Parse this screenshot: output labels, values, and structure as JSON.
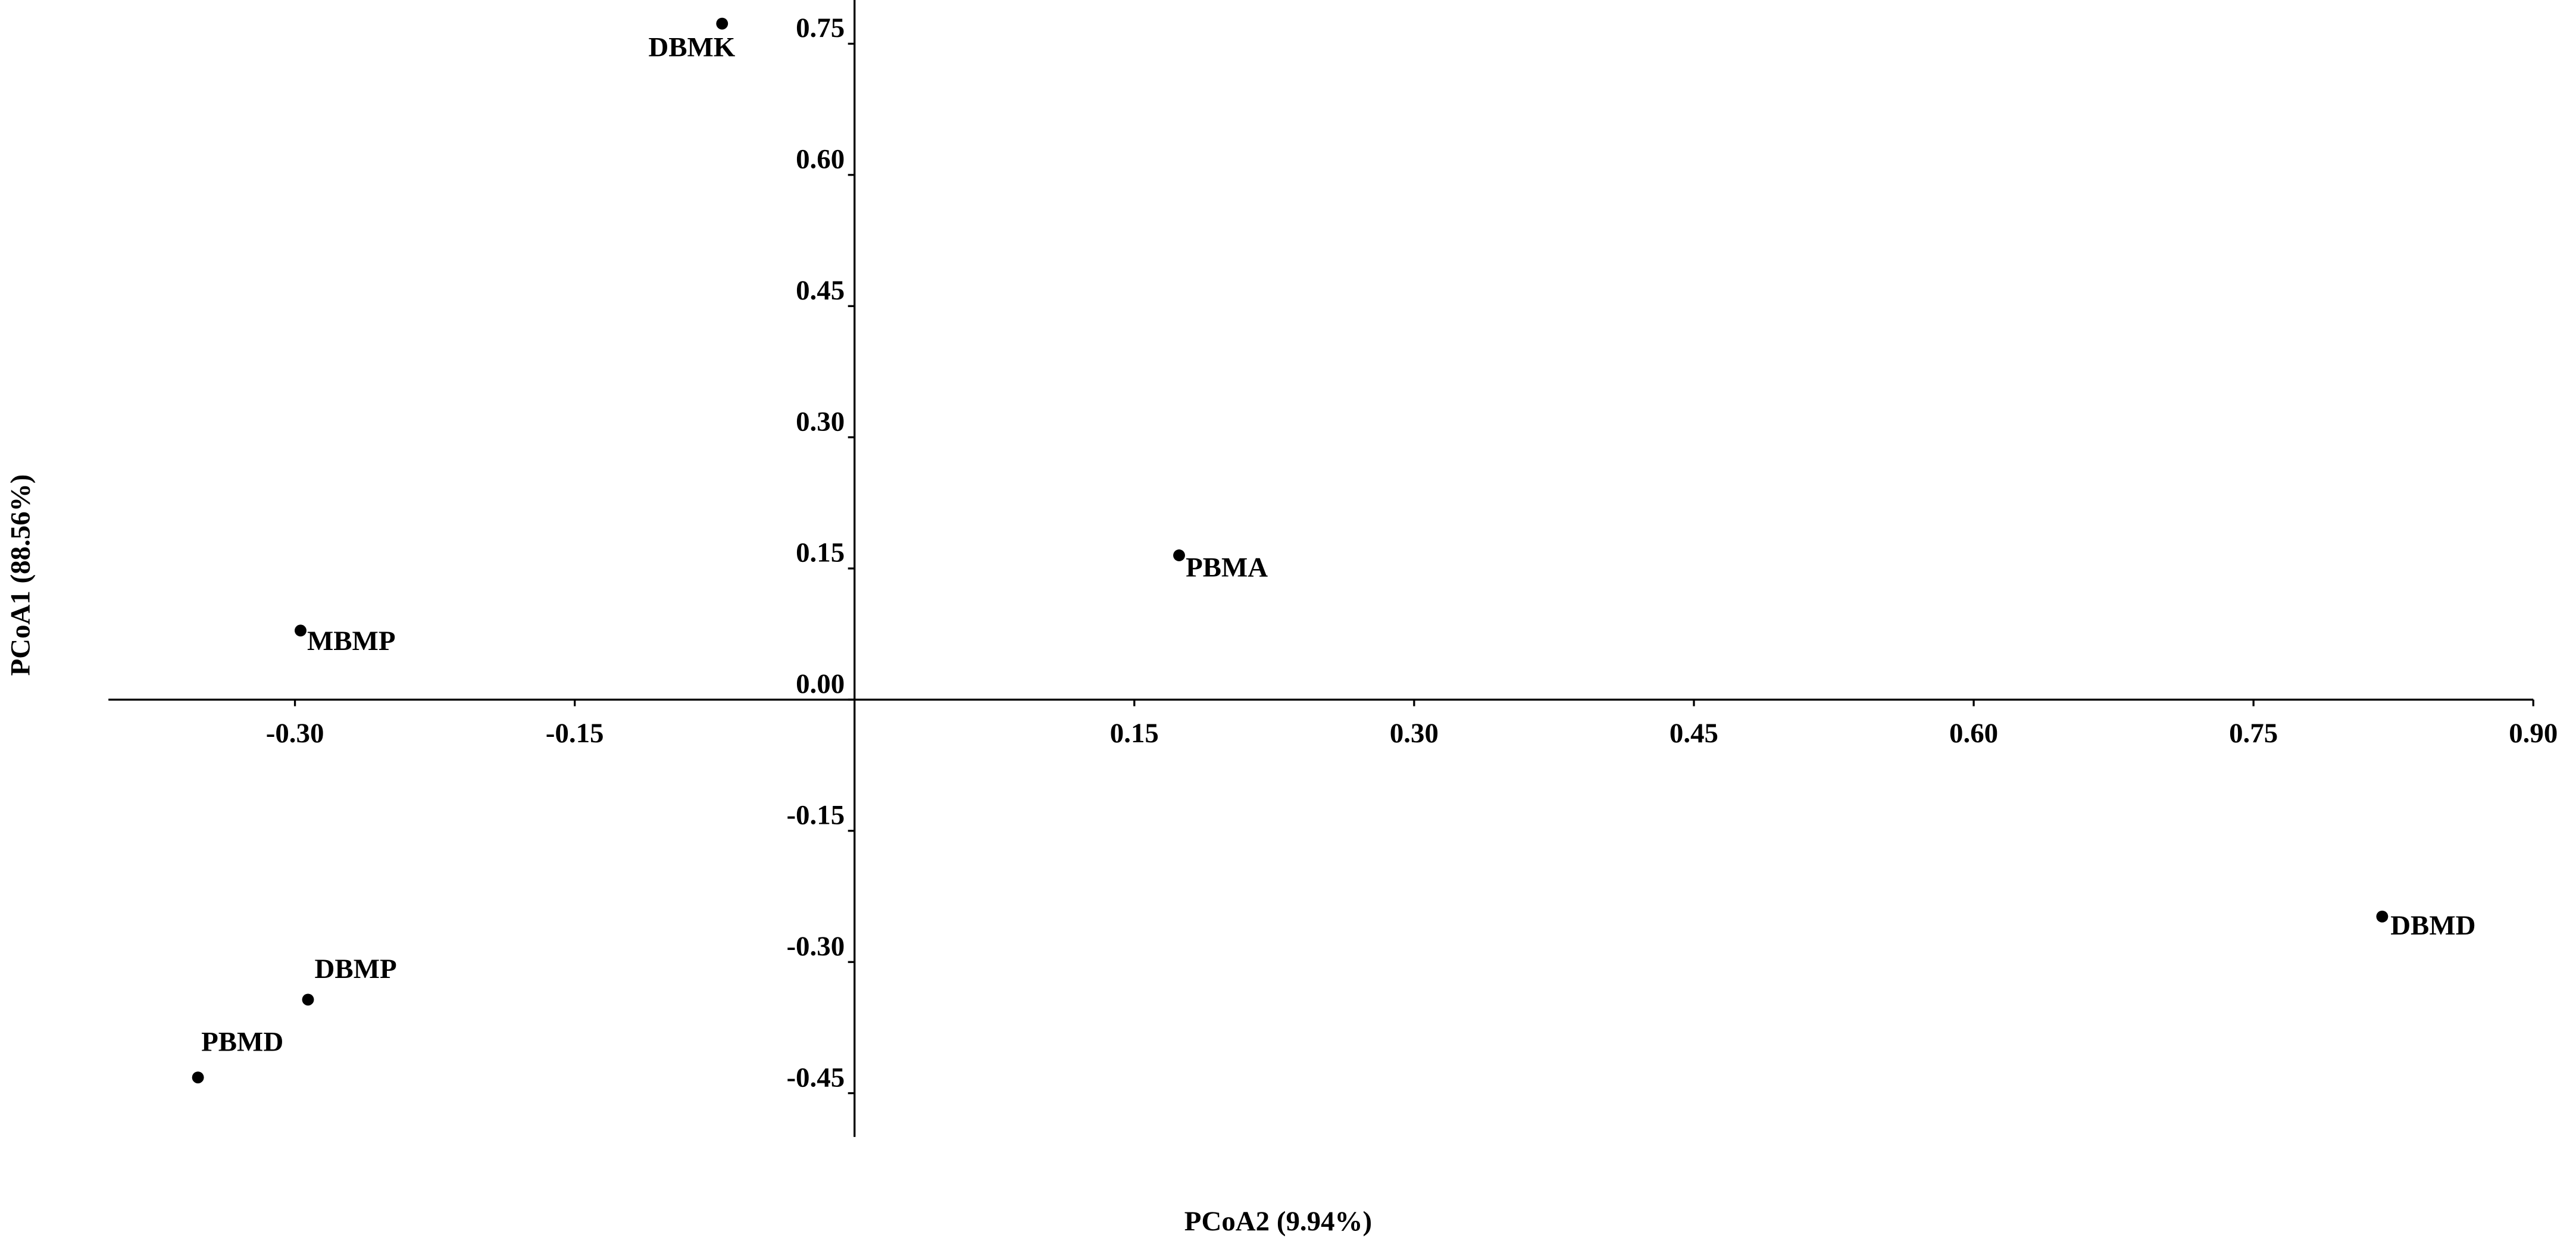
{
  "chart_data": {
    "type": "scatter",
    "x_label": "PCoA2 (9.94%)",
    "y_label": "PCoA1 (88.56%)",
    "labels": [
      "DBMK",
      "PBMA",
      "MBMP",
      "DBMD",
      "DBMP",
      "PBMD"
    ],
    "x": [
      -0.071,
      0.174,
      -0.297,
      0.819,
      -0.293,
      -0.352
    ],
    "values": [
      0.773,
      0.165,
      0.079,
      -0.248,
      -0.343,
      -0.432
    ],
    "color": "#000000",
    "xlim": [
      -0.4,
      0.9
    ],
    "ylim": [
      -0.5,
      0.8
    ],
    "xticks": [
      {
        "value": -0.3,
        "label": "-0.30"
      },
      {
        "value": -0.15,
        "label": "-0.15"
      },
      {
        "value": 0.15,
        "label": "0.15"
      },
      {
        "value": 0.3,
        "label": "0.30"
      },
      {
        "value": 0.45,
        "label": "0.45"
      },
      {
        "value": 0.6,
        "label": "0.60"
      },
      {
        "value": 0.75,
        "label": "0.75"
      },
      {
        "value": 0.9,
        "label": "0.90"
      }
    ],
    "yticks": [
      {
        "value": 0.75,
        "label": "0.75"
      },
      {
        "value": 0.6,
        "label": "0.60"
      },
      {
        "value": 0.45,
        "label": "0.45"
      },
      {
        "value": 0.3,
        "label": "0.30"
      },
      {
        "value": 0.15,
        "label": "0.15"
      },
      {
        "value": 0,
        "label": "0.00"
      },
      {
        "value": -0.15,
        "label": "-0.15"
      },
      {
        "value": -0.3,
        "label": "-0.30"
      },
      {
        "value": -0.45,
        "label": "-0.45"
      }
    ],
    "grid": false
  }
}
